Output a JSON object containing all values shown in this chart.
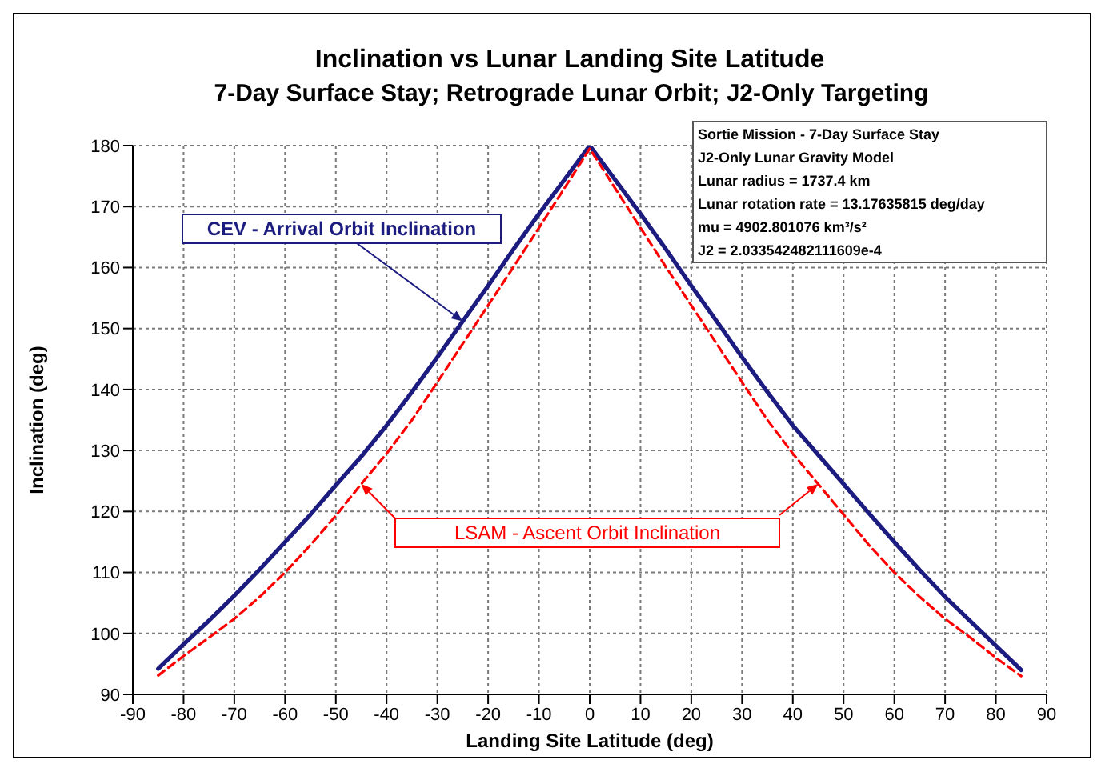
{
  "chart_data": {
    "type": "line",
    "title": "Inclination vs Lunar Landing Site Latitude",
    "subtitle": "7-Day Surface Stay; Retrograde Lunar Orbit; J2-Only Targeting",
    "xlabel": "Landing Site Latitude (deg)",
    "ylabel": "Inclination (deg)",
    "x": [
      -85,
      -80,
      -75,
      -70,
      -65,
      -60,
      -55,
      -50,
      -45,
      -40,
      -35,
      -30,
      -25,
      -20,
      -15,
      -10,
      -5,
      0,
      5,
      10,
      15,
      20,
      25,
      30,
      35,
      40,
      45,
      50,
      55,
      60,
      65,
      70,
      75,
      80,
      85
    ],
    "series": [
      {
        "name": "CEV - Arrival Orbit Inclination",
        "color": "#1c1c80",
        "line_style": "solid",
        "values": [
          94.2,
          98.2,
          102.1,
          106.2,
          110.5,
          115,
          119.5,
          124.3,
          129,
          134.1,
          139.6,
          145.3,
          151.2,
          157,
          163,
          168.8,
          174.4,
          180,
          174.4,
          168.8,
          163,
          157,
          151.2,
          145.3,
          139.6,
          134.1,
          129.3,
          124.5,
          119.7,
          115,
          110.4,
          106,
          102,
          98,
          94
        ]
      },
      {
        "name": "LSAM - Ascent Orbit Inclination",
        "color": "#ff0000",
        "line_style": "dashed",
        "values": [
          93.1,
          96.3,
          99.3,
          102.4,
          106,
          110,
          114.5,
          119.3,
          124.5,
          129.5,
          135,
          141.2,
          147.5,
          153.8,
          160.1,
          166.5,
          173,
          179.5,
          173,
          166.5,
          160.1,
          153.8,
          147.5,
          141.2,
          135,
          129.5,
          124.5,
          119.5,
          114.5,
          110,
          106,
          102.4,
          99.3,
          96,
          93
        ]
      }
    ],
    "xlim": [
      -90,
      90
    ],
    "xticks": [
      -90,
      -80,
      -70,
      -60,
      -50,
      -40,
      -30,
      -20,
      -10,
      0,
      10,
      20,
      30,
      40,
      50,
      60,
      70,
      80,
      90
    ],
    "ylim": [
      90,
      180
    ],
    "yticks": [
      90,
      100,
      110,
      120,
      130,
      140,
      150,
      160,
      170,
      180
    ],
    "grid": true,
    "annotations": [
      "Sortie Mission - 7-Day Surface Stay",
      "J2-Only Lunar Gravity Model",
      "Lunar radius = 1737.4 km",
      "Lunar rotation rate = 13.17635815 deg/day",
      "mu = 4902.801076 km³/s²",
      "J2 = 2.033542482111609e-4"
    ]
  }
}
